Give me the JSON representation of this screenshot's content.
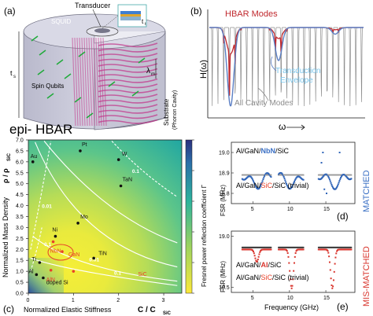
{
  "colors": {
    "hbar_red": "#c0282d",
    "envelope_blue": "#5b7fc4",
    "envelope_light": "#78c4ea",
    "cavity_gray": "#8c8c8c",
    "sic_orange": "#e8412a",
    "matched_blue": "#3a6fc4",
    "mismatch_red": "#d9362e",
    "marker_blue": "#2f64b8",
    "marker_dark": "#333333",
    "marker_gray": "#9a9a9a",
    "dashed": "#ffffff"
  },
  "panel_a": {
    "label": "(a)",
    "title": "epi- HBAR",
    "transducer": "Transducer",
    "squid": "SQUID",
    "spin_qubits": "Spin Qubits",
    "substrate": "Substrate",
    "phonon_cavity": "(Phonon Cavity)",
    "lambda": "λ",
    "lambda_sub": "m",
    "ts": "t",
    "ts_sub": "s",
    "tt": "t",
    "tt_sub": "t"
  },
  "panel_b": {
    "label": "(b)",
    "hbar_modes": "HBAR Modes",
    "transduction": "Transduction",
    "envelope": "Envelope",
    "all_cavity": "All Cavity Modes",
    "ylabel": "H(ω)",
    "xlabel": "ω"
  },
  "panel_c": {
    "label": "(c)",
    "xlabel_main": "Normalized Elastic Stiffness",
    "xlabel_frac_top": "C / C",
    "xlabel_frac_sub": "SiC",
    "ylabel_main": "Normalized Mass Density",
    "ylabel_frac": "ρ / ρ",
    "ylabel_frac_sub": "SiC",
    "colorbar_label": "Fresnel power reflection coefficient Γ",
    "chart_data": {
      "type": "heatmap",
      "x_ticks": [
        "0",
        "1",
        "2",
        "3"
      ],
      "y_ticks": [
        "0.0",
        "0.5",
        "1.0",
        "1.5",
        "2.0",
        "2.5",
        "3.0",
        "3.5",
        "4.0",
        "4.5",
        "5.0",
        "5.5",
        "6.0",
        "6.5",
        "7.0"
      ],
      "xlim": [
        0,
        3.4
      ],
      "ylim": [
        0,
        7.0
      ],
      "colorbar_ticks": [
        "0",
        "0.2",
        "0.4",
        "0.6",
        "0.8",
        "1"
      ],
      "contours": [
        {
          "level": "0.1",
          "style": "solid"
        },
        {
          "level": "0.01",
          "style": "solid"
        },
        {
          "level": "0.1",
          "style": "dashed"
        },
        {
          "level": "0.01",
          "style": "dashed"
        }
      ],
      "materials": [
        {
          "name": "Pt",
          "x": 1.15,
          "y": 6.5
        },
        {
          "name": "W",
          "x": 2.0,
          "y": 6.1
        },
        {
          "name": "Au",
          "x": 0.1,
          "y": 6.0
        },
        {
          "name": "TaN",
          "x": 2.05,
          "y": 4.9
        },
        {
          "name": "Ni",
          "x": 0.6,
          "y": 2.6
        },
        {
          "name": "Mo",
          "x": 1.1,
          "y": 3.2
        },
        {
          "name": "NbN",
          "x": 0.55,
          "y": 2.35
        },
        {
          "name": "AlN",
          "x": 0.5,
          "y": 1.05
        },
        {
          "name": "GaN",
          "x": 0.75,
          "y": 1.9
        },
        {
          "name": "TiN",
          "x": 1.45,
          "y": 1.6
        },
        {
          "name": "SiC",
          "x": 1.0,
          "y": 1.0
        },
        {
          "name": "Ti",
          "x": 0.25,
          "y": 1.4
        },
        {
          "name": "Al",
          "x": 0.18,
          "y": 0.85
        },
        {
          "name": "doped Si",
          "x": 0.33,
          "y": 0.7
        }
      ]
    }
  },
  "panel_d": {
    "label": "(d)",
    "top_text_parts": [
      "Al/GaN/",
      "NbN",
      "/SiC"
    ],
    "bottom_text_parts": [
      "Al/GaN/",
      "SiC",
      "/SiC (trivial)"
    ],
    "side_label": "MATCHED",
    "ylabel": "FSR (MHz)",
    "chart_data": {
      "type": "scatter",
      "ylim": [
        18.75,
        19.05
      ],
      "xlim": [
        2,
        19
      ],
      "y_ticks": [
        "18.8",
        "18.9",
        "19.0"
      ],
      "x_ticks": [
        "5",
        "10",
        "15"
      ],
      "series": [
        {
          "name": "Al/GaN/NbN/SiC",
          "trend": "three dips near 5, 10, 16 GHz"
        },
        {
          "name": "Al/GaN/SiC/SiC (trivial)",
          "trend": "flat ~18.89 MHz"
        }
      ]
    }
  },
  "panel_e": {
    "label": "(e)",
    "top_text_parts": [
      "Al/GaN/",
      "Al",
      "/SiC"
    ],
    "bottom_text_parts": [
      "Al/GaN/",
      "SiC",
      "/SiC (trivial)"
    ],
    "side_label": "MIS-MATCHED",
    "ylabel": "FSR (MHz)",
    "xlabel": "Frequency (GHz)",
    "chart_data": {
      "type": "scatter",
      "ylim": [
        18.45,
        19.05
      ],
      "xlim": [
        2,
        19
      ],
      "y_ticks": [
        "18.5",
        "19.0"
      ],
      "x_ticks": [
        "5",
        "10",
        "15"
      ],
      "series": [
        {
          "name": "Al/GaN/Al/SiC",
          "trend": "sharp dips near 5.5, 10.5, 16 GHz down to ~18.5 MHz"
        },
        {
          "name": "Al/GaN/SiC/SiC (trivial)",
          "trend": "flat ~18.89 MHz"
        }
      ]
    }
  }
}
